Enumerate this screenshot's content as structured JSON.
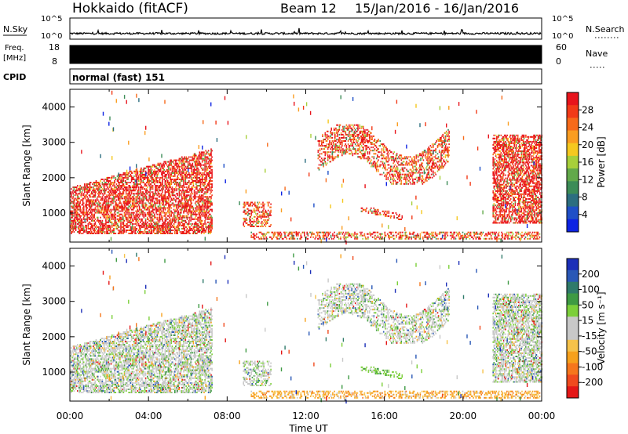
{
  "header": {
    "station": "Hokkaido (fitACF)",
    "beam": "Beam 12",
    "date_range": "15/Jan/2016 - 16/Jan/2016"
  },
  "strip_panels": {
    "nsky_label": "N.Sky",
    "nsearch_label": "N.Search",
    "nsky_ticks": [
      "10^5",
      "10^0"
    ],
    "nsearch_ticks": [
      "10^5",
      "10^0"
    ],
    "freq_label": [
      "Freq.",
      "[MHz]"
    ],
    "freq_ticks": [
      "18",
      "8"
    ],
    "nave_label": "Nave",
    "nave_ticks": [
      "60",
      "0"
    ],
    "cpid_label": "CPID",
    "cpid_value": "normal (fast) 151"
  },
  "chart_data": [
    {
      "type": "heatmap",
      "name": "power",
      "ylabel": "Slant Range [km]",
      "xlabel": "",
      "ylim": [
        180,
        4500
      ],
      "xlim_hours": [
        0,
        24
      ],
      "y_ticks": [
        "1000",
        "2000",
        "3000",
        "4000"
      ],
      "colorbar": {
        "label": "Power [dB]",
        "tick_labels": [
          "28",
          "24",
          "20",
          "16",
          "12",
          "8",
          "4"
        ],
        "colors": [
          "#e8141c",
          "#f23a18",
          "#f76a1a",
          "#fa9d21",
          "#f5c81f",
          "#a7cf3a",
          "#62a94a",
          "#3c8c57",
          "#2c6e80",
          "#1f4fc7",
          "#0d23e3"
        ]
      },
      "regions": [
        {
          "label": "dense-night",
          "hours": [
            0,
            7.2
          ],
          "range_km": [
            400,
            2800
          ],
          "dominant": "high power (red/orange)"
        },
        {
          "label": "early-morning-near",
          "hours": [
            8.8,
            10.2
          ],
          "range_km": [
            600,
            1300
          ],
          "dominant": "red/orange"
        },
        {
          "label": "near-range-band",
          "hours": [
            9.2,
            23.9
          ],
          "range_km": [
            250,
            450
          ],
          "dominant": "red/orange"
        },
        {
          "label": "afternoon-streak",
          "hours": [
            14.8,
            17.0
          ],
          "range_km": [
            800,
            1150
          ],
          "dominant": "red/orange"
        },
        {
          "label": "far-arc",
          "hours": [
            12.6,
            19.3
          ],
          "range_km": [
            1800,
            3500
          ],
          "dominant": "orange/red"
        },
        {
          "label": "late-evening",
          "hours": [
            21.5,
            24
          ],
          "range_km": [
            700,
            3200
          ],
          "dominant": "red/orange"
        }
      ]
    },
    {
      "type": "heatmap",
      "name": "velocity",
      "ylabel": "Slant Range [km]",
      "xlabel": "Time UT",
      "ylim": [
        180,
        4500
      ],
      "xlim_hours": [
        0,
        24
      ],
      "y_ticks": [
        "1000",
        "2000",
        "3000",
        "4000"
      ],
      "x_ticks": [
        "00:00",
        "04:00",
        "08:00",
        "12:00",
        "16:00",
        "20:00",
        "00:00"
      ],
      "colorbar": {
        "label": "Velocity [m s⁻¹]",
        "tick_labels": [
          "200",
          "100",
          "50",
          "15",
          "-15",
          "-50",
          "-100",
          "-200"
        ],
        "colors": [
          "#1c2fb8",
          "#2a58b6",
          "#2f7a6a",
          "#3e9a43",
          "#7ccf3a",
          "#c8c8c8",
          "#c8c8c8",
          "#f6c24a",
          "#f7a11c",
          "#f6761c",
          "#f04a1e",
          "#e41717"
        ]
      },
      "regions": [
        {
          "label": "dense-night",
          "hours": [
            0,
            7.2
          ],
          "range_km": [
            400,
            2800
          ],
          "dominant": "grey (near zero) with green"
        },
        {
          "label": "early-morning-near",
          "hours": [
            8.8,
            10.2
          ],
          "range_km": [
            600,
            1300
          ],
          "dominant": "grey"
        },
        {
          "label": "near-range-band",
          "hours": [
            9.2,
            23.9
          ],
          "range_km": [
            250,
            450
          ],
          "dominant": "orange/yellow"
        },
        {
          "label": "afternoon-streak",
          "hours": [
            14.8,
            17.0
          ],
          "range_km": [
            800,
            1150
          ],
          "dominant": "green"
        },
        {
          "label": "far-arc",
          "hours": [
            12.6,
            19.3
          ],
          "range_km": [
            1800,
            3500
          ],
          "dominant": "grey with green"
        },
        {
          "label": "late-evening",
          "hours": [
            21.5,
            24
          ],
          "range_km": [
            700,
            3200
          ],
          "dominant": "grey with green"
        }
      ]
    }
  ]
}
